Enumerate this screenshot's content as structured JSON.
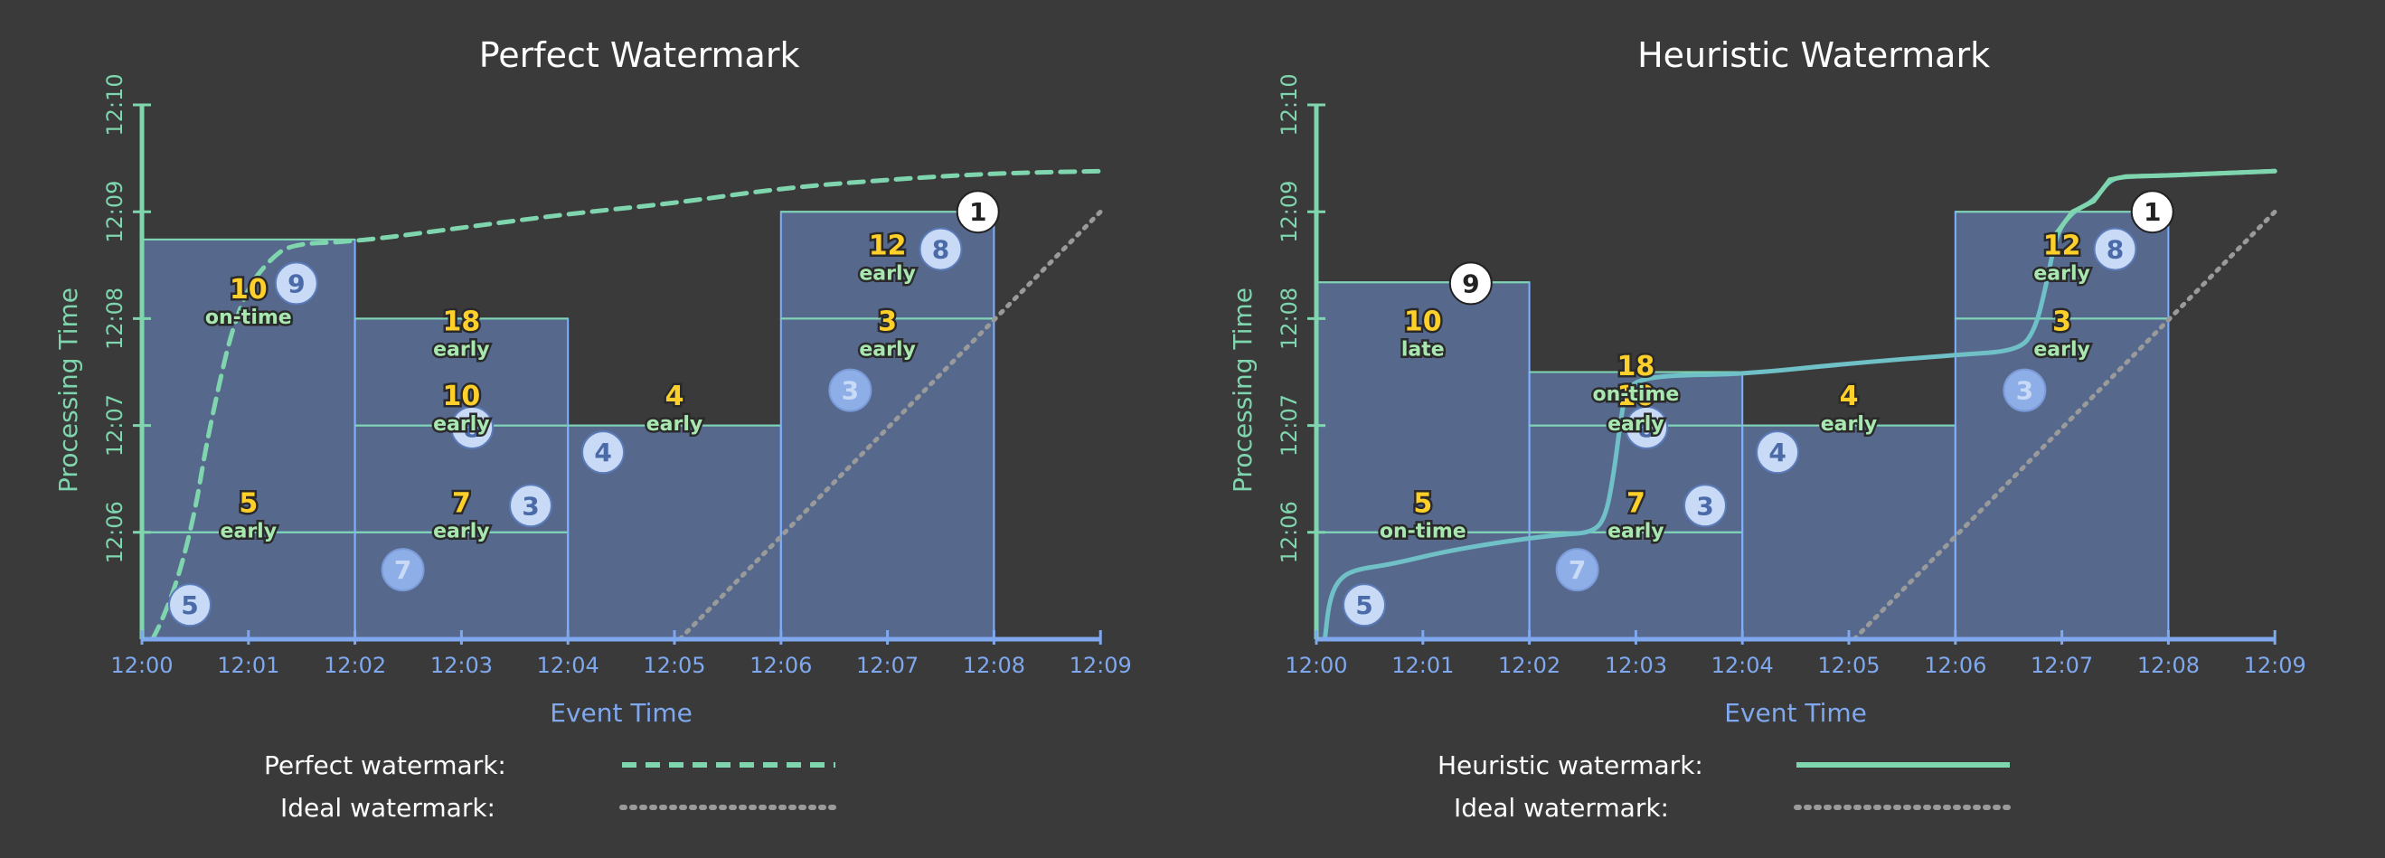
{
  "colors": {
    "background": "#3a3a3a",
    "pane_fill": "#6e8fd0",
    "pane_edge": "#7fb0ff",
    "pane_divider": "#7fd6ae",
    "axis_x": "#7fa8ee",
    "axis_y": "#7fd6ae",
    "watermark": "#7fd6ae",
    "heuristic_line": "#70c0c8",
    "ideal_line": "#9a9a9a",
    "sum_text": "#ffd02a",
    "tag_text": "#a8e8b0",
    "circle_fill": "#c8daf5",
    "circle_text": "#4a6aa8",
    "circle_latest_fill": "#ffffff",
    "circle_latest_text": "#222222"
  },
  "chart_data": [
    {
      "type": "bar",
      "title": "Perfect Watermark",
      "xlabel": "Event Time",
      "ylabel": "Processing Time",
      "x_ticks": [
        "12:00",
        "12:01",
        "12:02",
        "12:03",
        "12:04",
        "12:05",
        "12:06",
        "12:07",
        "12:08",
        "12:09"
      ],
      "y_ticks": [
        "12:06",
        "12:07",
        "12:08",
        "12:09",
        "12:10"
      ],
      "x_range_minutes": [
        0,
        9
      ],
      "y_range_minutes": [
        5,
        10
      ],
      "watermark_style": "dashed",
      "watermark_points": [
        [
          0.1,
          5.0
        ],
        [
          0.2,
          5.2
        ],
        [
          0.35,
          5.6
        ],
        [
          0.5,
          6.2
        ],
        [
          0.6,
          6.8
        ],
        [
          0.75,
          7.5
        ],
        [
          0.85,
          7.9
        ],
        [
          1.0,
          8.3
        ],
        [
          1.2,
          8.55
        ],
        [
          1.4,
          8.7
        ],
        [
          2.0,
          8.72
        ],
        [
          3.0,
          8.85
        ],
        [
          4.0,
          8.98
        ],
        [
          5.0,
          9.08
        ],
        [
          6.0,
          9.22
        ],
        [
          7.0,
          9.3
        ],
        [
          8.0,
          9.36
        ],
        [
          9.0,
          9.38
        ]
      ],
      "panes": [
        {
          "x0": 0,
          "x1": 2,
          "y0": 5,
          "y1": 6
        },
        {
          "x0": 0,
          "x1": 2,
          "y0": 6,
          "y1": 8.74
        },
        {
          "x0": 2,
          "x1": 4,
          "y0": 5,
          "y1": 6
        },
        {
          "x0": 2,
          "x1": 4,
          "y0": 6,
          "y1": 7
        },
        {
          "x0": 2,
          "x1": 4,
          "y0": 7,
          "y1": 8
        },
        {
          "x0": 4,
          "x1": 6,
          "y0": 5,
          "y1": 7
        },
        {
          "x0": 6,
          "x1": 8,
          "y0": 5,
          "y1": 8
        },
        {
          "x0": 6,
          "x1": 8,
          "y0": 8,
          "y1": 9
        }
      ],
      "results": [
        {
          "x": 1.0,
          "y": 6.14,
          "value": "5",
          "tag": "early"
        },
        {
          "x": 1.0,
          "y": 8.14,
          "value": "10",
          "tag": "on-time"
        },
        {
          "x": 3.0,
          "y": 6.14,
          "value": "7",
          "tag": "early"
        },
        {
          "x": 3.0,
          "y": 7.14,
          "value": "10",
          "tag": "early"
        },
        {
          "x": 3.0,
          "y": 7.84,
          "value": "18",
          "tag": "early"
        },
        {
          "x": 5.0,
          "y": 7.14,
          "value": "4",
          "tag": "early"
        },
        {
          "x": 7.0,
          "y": 7.84,
          "value": "3",
          "tag": "early"
        },
        {
          "x": 7.0,
          "y": 8.55,
          "value": "12",
          "tag": "early"
        }
      ],
      "points": [
        {
          "x": 0.45,
          "y": 5.32,
          "value": "5",
          "style": "normal"
        },
        {
          "x": 2.45,
          "y": 5.65,
          "value": "7",
          "style": "faded"
        },
        {
          "x": 3.65,
          "y": 6.25,
          "value": "3",
          "style": "normal"
        },
        {
          "x": 3.1,
          "y": 6.98,
          "value": "8",
          "style": "normal"
        },
        {
          "x": 4.33,
          "y": 6.75,
          "value": "4",
          "style": "normal"
        },
        {
          "x": 6.65,
          "y": 7.33,
          "value": "3",
          "style": "faded"
        },
        {
          "x": 7.5,
          "y": 8.65,
          "value": "8",
          "style": "normal"
        },
        {
          "x": 1.45,
          "y": 8.33,
          "value": "9",
          "style": "normal"
        },
        {
          "x": 7.85,
          "y": 9.0,
          "value": "1",
          "style": "latest"
        }
      ],
      "legend": [
        {
          "label": "Perfect watermark:",
          "style": "dashed"
        },
        {
          "label": "Ideal watermark:",
          "style": "dotted"
        }
      ]
    },
    {
      "type": "bar",
      "title": "Heuristic Watermark",
      "xlabel": "Event Time",
      "ylabel": "Processing Time",
      "x_ticks": [
        "12:00",
        "12:01",
        "12:02",
        "12:03",
        "12:04",
        "12:05",
        "12:06",
        "12:07",
        "12:08",
        "12:09"
      ],
      "y_ticks": [
        "12:06",
        "12:07",
        "12:08",
        "12:09",
        "12:10"
      ],
      "x_range_minutes": [
        0,
        9
      ],
      "y_range_minutes": [
        5,
        10
      ],
      "watermark_style": "solid",
      "watermark_points": [
        [
          0.08,
          5.0
        ],
        [
          0.12,
          5.35
        ],
        [
          0.2,
          5.55
        ],
        [
          0.35,
          5.65
        ],
        [
          0.7,
          5.7
        ],
        [
          1.2,
          5.82
        ],
        [
          1.8,
          5.92
        ],
        [
          2.3,
          5.98
        ],
        [
          2.6,
          6.0
        ],
        [
          2.72,
          6.15
        ],
        [
          2.8,
          6.6
        ],
        [
          2.85,
          7.0
        ],
        [
          2.9,
          7.3
        ],
        [
          3.0,
          7.42
        ],
        [
          3.3,
          7.47
        ],
        [
          4.0,
          7.48
        ],
        [
          5.0,
          7.58
        ],
        [
          6.0,
          7.66
        ],
        [
          6.6,
          7.7
        ],
        [
          6.75,
          7.9
        ],
        [
          6.85,
          8.3
        ],
        [
          6.95,
          8.8
        ],
        [
          7.1,
          9.0
        ],
        [
          7.3,
          9.1
        ],
        [
          7.45,
          9.3
        ],
        [
          7.6,
          9.33
        ],
        [
          8.0,
          9.34
        ],
        [
          9.0,
          9.38
        ]
      ],
      "panes": [
        {
          "x0": 0,
          "x1": 2,
          "y0": 5,
          "y1": 6
        },
        {
          "x0": 0,
          "x1": 2,
          "y0": 6,
          "y1": 8.34
        },
        {
          "x0": 2,
          "x1": 4,
          "y0": 5,
          "y1": 6
        },
        {
          "x0": 2,
          "x1": 4,
          "y0": 6,
          "y1": 7
        },
        {
          "x0": 2,
          "x1": 4,
          "y0": 7,
          "y1": 7.5
        },
        {
          "x0": 4,
          "x1": 6,
          "y0": 5,
          "y1": 7
        },
        {
          "x0": 6,
          "x1": 8,
          "y0": 5,
          "y1": 8
        },
        {
          "x0": 6,
          "x1": 8,
          "y0": 8,
          "y1": 9
        }
      ],
      "results": [
        {
          "x": 1.0,
          "y": 6.14,
          "value": "5",
          "tag": "on-time"
        },
        {
          "x": 1.0,
          "y": 7.84,
          "value": "10",
          "tag": "late"
        },
        {
          "x": 3.0,
          "y": 6.14,
          "value": "7",
          "tag": "early"
        },
        {
          "x": 3.0,
          "y": 7.14,
          "value": "10",
          "tag": "early"
        },
        {
          "x": 3.0,
          "y": 7.42,
          "value": "18",
          "tag": "on-time"
        },
        {
          "x": 5.0,
          "y": 7.14,
          "value": "4",
          "tag": "early"
        },
        {
          "x": 7.0,
          "y": 7.84,
          "value": "3",
          "tag": "early"
        },
        {
          "x": 7.0,
          "y": 8.55,
          "value": "12",
          "tag": "early"
        }
      ],
      "points": [
        {
          "x": 0.45,
          "y": 5.32,
          "value": "5",
          "style": "normal"
        },
        {
          "x": 2.45,
          "y": 5.65,
          "value": "7",
          "style": "faded"
        },
        {
          "x": 3.65,
          "y": 6.25,
          "value": "3",
          "style": "normal"
        },
        {
          "x": 3.1,
          "y": 6.98,
          "value": "8",
          "style": "normal"
        },
        {
          "x": 4.33,
          "y": 6.75,
          "value": "4",
          "style": "normal"
        },
        {
          "x": 6.65,
          "y": 7.33,
          "value": "3",
          "style": "faded"
        },
        {
          "x": 7.5,
          "y": 8.65,
          "value": "8",
          "style": "normal"
        },
        {
          "x": 1.45,
          "y": 8.33,
          "value": "9",
          "style": "latest"
        },
        {
          "x": 7.85,
          "y": 9.0,
          "value": "1",
          "style": "latest"
        }
      ],
      "legend": [
        {
          "label": "Heuristic watermark:",
          "style": "solid"
        },
        {
          "label": "Ideal watermark:",
          "style": "dotted"
        }
      ]
    }
  ]
}
